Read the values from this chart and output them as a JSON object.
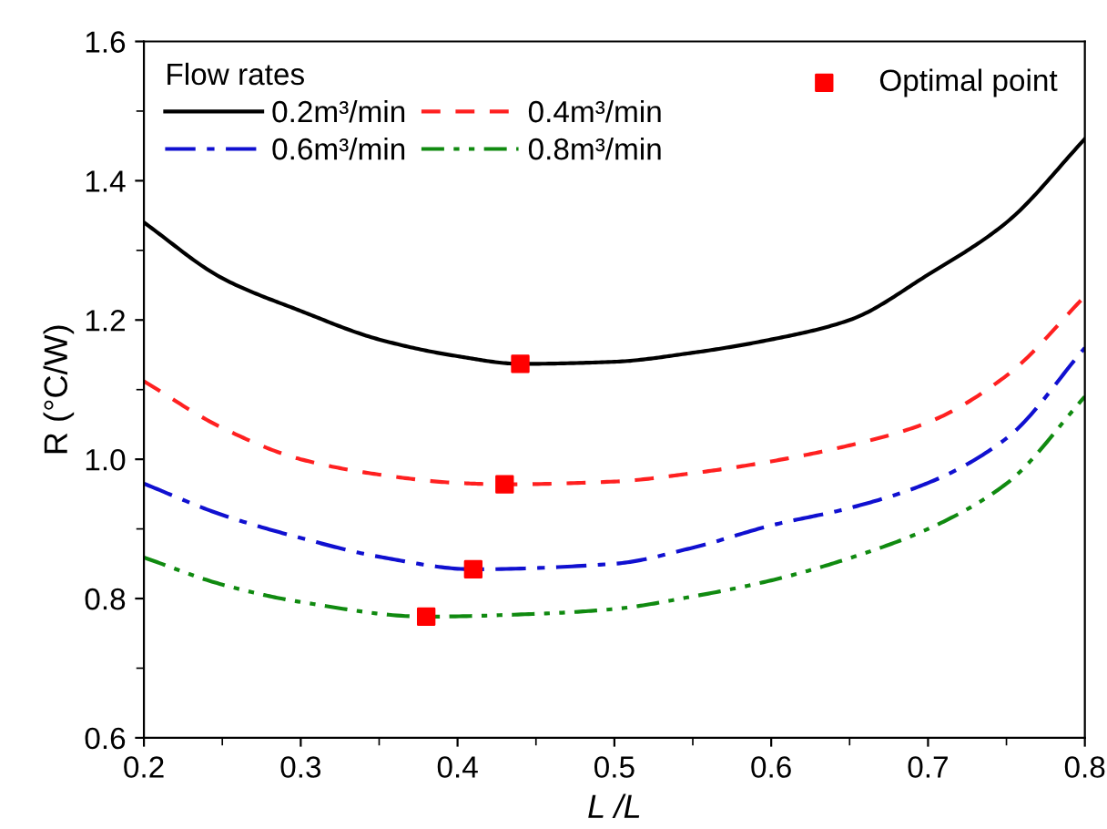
{
  "chart_data": {
    "type": "line",
    "xlabel": "L /L",
    "ylabel": "R (°C/W)",
    "legend_title": "Flow rates",
    "xlim": [
      0.2,
      0.8
    ],
    "xticks": [
      0.2,
      0.3,
      0.4,
      0.5,
      0.6,
      0.7,
      0.8
    ],
    "ylim": [
      0.6,
      1.6
    ],
    "yticks": [
      0.6,
      0.8,
      {
        "value": 1.0,
        "label": "1.0"
      },
      1.2,
      1.4,
      1.6
    ],
    "grid": false,
    "legend": "top left",
    "marker": "none",
    "series": [
      {
        "name": "0.2m³/min",
        "color": "#000000",
        "line_style": "solid",
        "x": [
          0.2,
          0.25,
          0.3,
          0.35,
          0.4,
          0.44,
          0.5,
          0.55,
          0.6,
          0.65,
          0.7,
          0.75,
          0.8
        ],
        "values": [
          1.34,
          1.26,
          1.213,
          1.172,
          1.148,
          1.137,
          1.14,
          1.153,
          1.172,
          1.2,
          1.265,
          1.34,
          1.46
        ]
      },
      {
        "name": "0.4m³/min",
        "color": "#ff2020",
        "line_style": "dashed",
        "x": [
          0.2,
          0.25,
          0.3,
          0.35,
          0.4,
          0.43,
          0.5,
          0.55,
          0.6,
          0.65,
          0.7,
          0.75,
          0.8
        ],
        "values": [
          1.112,
          1.045,
          1.0,
          0.978,
          0.966,
          0.964,
          0.968,
          0.98,
          0.997,
          1.02,
          1.053,
          1.12,
          1.234
        ]
      },
      {
        "name": "0.6m³/min",
        "color": "#1010d0",
        "line_style": "dashdot",
        "x": [
          0.2,
          0.25,
          0.3,
          0.35,
          0.41,
          0.5,
          0.55,
          0.6,
          0.65,
          0.7,
          0.75,
          0.8
        ],
        "values": [
          0.965,
          0.92,
          0.887,
          0.86,
          0.842,
          0.85,
          0.873,
          0.905,
          0.93,
          0.966,
          1.03,
          1.16
        ]
      },
      {
        "name": "0.8m³/min",
        "color": "#108a10",
        "line_style": "dashdotdot",
        "x": [
          0.2,
          0.25,
          0.3,
          0.38,
          0.45,
          0.5,
          0.55,
          0.6,
          0.65,
          0.7,
          0.75,
          0.8
        ],
        "values": [
          0.859,
          0.82,
          0.795,
          0.774,
          0.778,
          0.785,
          0.803,
          0.826,
          0.858,
          0.9,
          0.965,
          1.09
        ]
      },
      {
        "name": "Optimal point",
        "type": "scatter",
        "marker": "square",
        "color": "#ff0000",
        "x": [
          0.44,
          0.43,
          0.41,
          0.38
        ],
        "values": [
          1.137,
          0.964,
          0.842,
          0.774
        ]
      }
    ]
  }
}
